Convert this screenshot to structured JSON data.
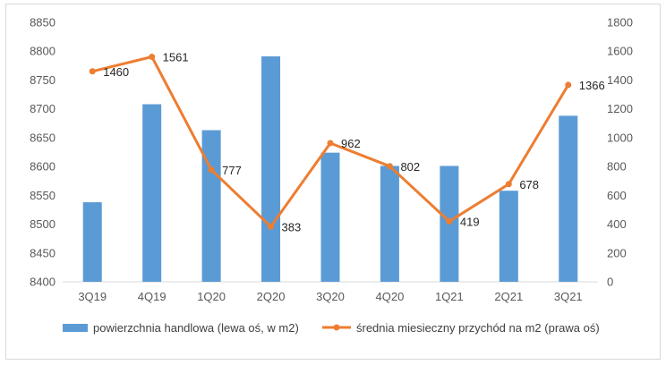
{
  "chart_data": {
    "type": "bar+line",
    "categories": [
      "3Q19",
      "4Q19",
      "1Q20",
      "2Q20",
      "3Q20",
      "4Q20",
      "1Q21",
      "2Q21",
      "3Q21"
    ],
    "series": [
      {
        "name": "powierzchnia handlowa (lewa oś, w m2)",
        "type": "bar",
        "axis": "left",
        "color": "#5b9bd5",
        "values": [
          8538,
          8708,
          8663,
          8791,
          8624,
          8601,
          8601,
          8558,
          8688
        ]
      },
      {
        "name": "średnia miesieczny przychód na m2 (prawa oś)",
        "type": "line",
        "axis": "right",
        "color": "#ed7d31",
        "values": [
          1460,
          1561,
          777,
          383,
          962,
          802,
          419,
          678,
          1366
        ],
        "labels": [
          "1460",
          "1561",
          "777",
          "383",
          "962",
          "802",
          "419",
          "678",
          "1366"
        ]
      }
    ],
    "y_left": {
      "min": 8400,
      "max": 8850,
      "ticks": [
        "8400",
        "8450",
        "8500",
        "8550",
        "8600",
        "8650",
        "8700",
        "8750",
        "8800",
        "8850"
      ]
    },
    "y_right": {
      "min": 0,
      "max": 1800,
      "ticks": [
        "0",
        "200",
        "400",
        "600",
        "800",
        "1000",
        "1200",
        "1400",
        "1600",
        "1800"
      ]
    },
    "grid": false,
    "legend_position": "bottom"
  }
}
